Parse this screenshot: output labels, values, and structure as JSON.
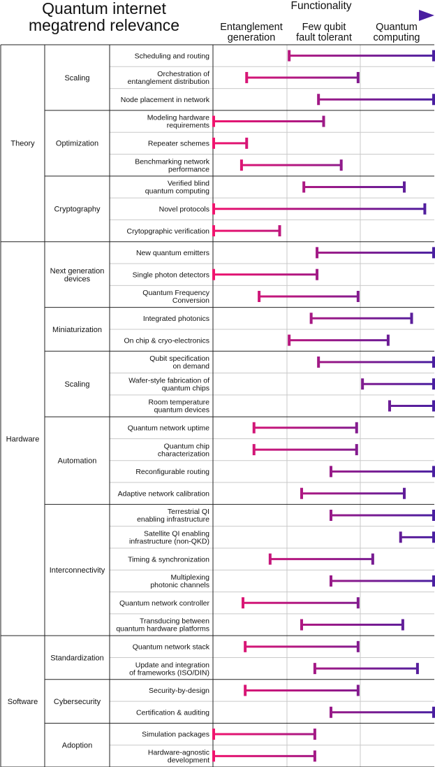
{
  "title_lines": [
    "Quantum internet",
    "megatrend relevance"
  ],
  "chart_data": {
    "type": "range-bar",
    "functionality_label": "Functionality",
    "columns": [
      "Entanglement generation",
      "Few qubit fault tolerant",
      "Quantum computing"
    ],
    "column_lines": [
      [
        "Entanglement",
        "generation"
      ],
      [
        "Few qubit",
        "fault tolerant"
      ],
      [
        "Quantum",
        "computing"
      ]
    ],
    "scale": [
      0,
      3
    ],
    "colors": {
      "start": "#f0146e",
      "end": "#4a1fa0"
    },
    "categories": [
      {
        "name": "Theory",
        "groups": [
          {
            "name": [
              "Scaling"
            ],
            "items": [
              {
                "label": [
                  "Scheduling and routing"
                ],
                "range": [
                  1.03,
                  3.0
                ]
              },
              {
                "label": [
                  "Orchestration of",
                  "entanglement distribution"
                ],
                "range": [
                  0.45,
                  1.97
                ]
              },
              {
                "label": [
                  "Node placement in network"
                ],
                "range": [
                  1.43,
                  3.0
                ]
              }
            ]
          },
          {
            "name": [
              "Optimization"
            ],
            "items": [
              {
                "label": [
                  "Modeling hardware",
                  "requirements"
                ],
                "range": [
                  0.0,
                  1.5
                ]
              },
              {
                "label": [
                  "Repeater schemes"
                ],
                "range": [
                  0.0,
                  0.45
                ]
              },
              {
                "label": [
                  "Benchmarking network",
                  "performance"
                ],
                "range": [
                  0.38,
                  1.74
                ]
              }
            ]
          },
          {
            "name": [
              "Cryptography"
            ],
            "items": [
              {
                "label": [
                  "Verified blind",
                  "quantum computing"
                ],
                "range": [
                  1.23,
                  2.6
                ]
              },
              {
                "label": [
                  "Novel protocols"
                ],
                "range": [
                  0.0,
                  2.88
                ]
              },
              {
                "label": [
                  "Crytopgraphic verification"
                ],
                "range": [
                  0.0,
                  0.9
                ]
              }
            ]
          }
        ]
      },
      {
        "name": "Hardware",
        "groups": [
          {
            "name": [
              "Next generation",
              "devices"
            ],
            "items": [
              {
                "label": [
                  "New quantum emitters"
                ],
                "range": [
                  1.41,
                  3.0
                ]
              },
              {
                "label": [
                  "Single photon detectors"
                ],
                "range": [
                  0.0,
                  1.41
                ]
              },
              {
                "label": [
                  "Quantum Frequency",
                  "Conversion"
                ],
                "range": [
                  0.62,
                  1.97
                ]
              }
            ]
          },
          {
            "name": [
              "Miniaturization"
            ],
            "items": [
              {
                "label": [
                  "Integrated photonics"
                ],
                "range": [
                  1.33,
                  2.7
                ]
              },
              {
                "label": [
                  "On chip & cryo-electronics"
                ],
                "range": [
                  1.03,
                  2.38
                ]
              }
            ]
          },
          {
            "name": [
              "Scaling"
            ],
            "items": [
              {
                "label": [
                  "Qubit specification",
                  "on demand"
                ],
                "range": [
                  1.43,
                  3.0
                ]
              },
              {
                "label": [
                  "Wafer-style fabrication of",
                  "quantum chips"
                ],
                "range": [
                  2.03,
                  3.0
                ]
              },
              {
                "label": [
                  "Room temperature",
                  "quantum devices"
                ],
                "range": [
                  2.4,
                  3.0
                ]
              }
            ]
          },
          {
            "name": [
              "Automation"
            ],
            "items": [
              {
                "label": [
                  "Quantum network uptime"
                ],
                "range": [
                  0.55,
                  1.95
                ]
              },
              {
                "label": [
                  "Quantum chip",
                  "characterization"
                ],
                "range": [
                  0.55,
                  1.95
                ]
              },
              {
                "label": [
                  "Reconfigurable routing"
                ],
                "range": [
                  1.6,
                  3.0
                ]
              },
              {
                "label": [
                  "Adaptive network calibration"
                ],
                "range": [
                  1.2,
                  2.6
                ]
              }
            ]
          },
          {
            "name": [
              "Interconnectivity"
            ],
            "items": [
              {
                "label": [
                  "Terrestrial QI",
                  "enabling infrastructure"
                ],
                "range": [
                  1.6,
                  3.0
                ]
              },
              {
                "label": [
                  "Satellite QI enabling",
                  "infrastructure (non-QKD)"
                ],
                "range": [
                  2.55,
                  3.0
                ]
              },
              {
                "label": [
                  "Timing & synchronization"
                ],
                "range": [
                  0.77,
                  2.17
                ]
              },
              {
                "label": [
                  "Multiplexing",
                  "photonic channels"
                ],
                "range": [
                  1.6,
                  3.0
                ]
              },
              {
                "label": [
                  "Quantum network controller"
                ],
                "range": [
                  0.4,
                  1.97
                ]
              },
              {
                "label": [
                  "Transducing between",
                  "quantum hardware platforms"
                ],
                "range": [
                  1.2,
                  2.58
                ]
              }
            ]
          }
        ]
      },
      {
        "name": "Software",
        "groups": [
          {
            "name": [
              "Standardization"
            ],
            "items": [
              {
                "label": [
                  "Quantum network stack"
                ],
                "range": [
                  0.43,
                  1.97
                ]
              },
              {
                "label": [
                  "Update and integration",
                  "of frameworks (ISO/DIN)"
                ],
                "range": [
                  1.38,
                  2.78
                ]
              }
            ]
          },
          {
            "name": [
              "Cybersecurity"
            ],
            "items": [
              {
                "label": [
                  "Security-by-design"
                ],
                "range": [
                  0.43,
                  1.97
                ]
              },
              {
                "label": [
                  "Certification & auditing"
                ],
                "range": [
                  1.6,
                  3.0
                ]
              }
            ]
          },
          {
            "name": [
              "Adoption"
            ],
            "items": [
              {
                "label": [
                  "Simulation packages"
                ],
                "range": [
                  0.0,
                  1.38
                ]
              },
              {
                "label": [
                  "Hardware-agnostic",
                  "development"
                ],
                "range": [
                  0.0,
                  1.38
                ]
              }
            ]
          }
        ]
      }
    ]
  }
}
